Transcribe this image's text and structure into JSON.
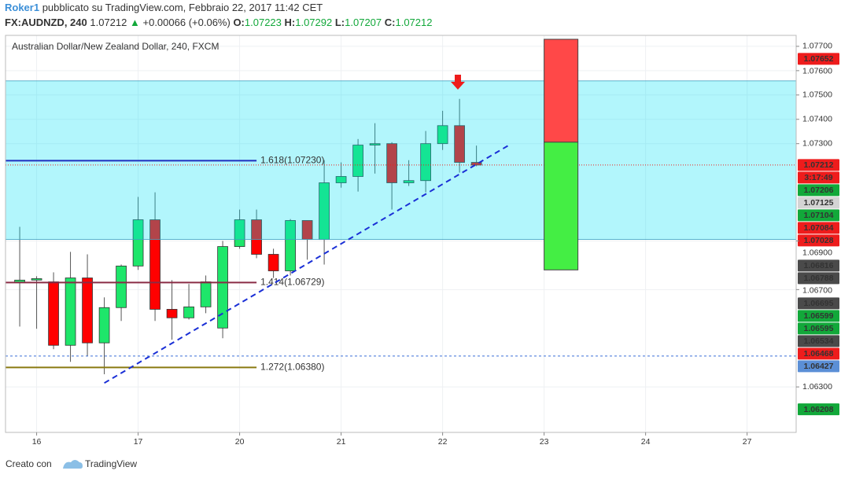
{
  "header": {
    "author": "Roker1",
    "published": "pubblicato su TradingView.com, Febbraio 22, 2017 11:42 CET",
    "symbol": "FX:AUDNZD, 240",
    "last": 1.07212,
    "change": "+0.00066 (+0.06%)",
    "o_label": "O:",
    "open": 1.07223,
    "h_label": "H:",
    "high": 1.07292,
    "l_label": "L:",
    "low": 1.07207,
    "c_label": "C:",
    "close": 1.07212
  },
  "chart_data": {
    "type": "candlestick",
    "title": "Australian Dollar/New Zealand Dollar, 240, FXCM",
    "x": [
      0,
      1,
      2,
      3,
      4,
      5,
      6,
      7,
      8,
      9,
      10,
      11,
      12,
      13,
      14,
      15,
      16,
      17,
      18,
      19,
      20,
      21,
      22,
      23,
      24,
      25,
      26,
      27
    ],
    "open": [
      1.06729,
      1.06739,
      1.06732,
      1.06471,
      1.06748,
      1.06481,
      1.06626,
      1.06797,
      1.06987,
      1.06619,
      1.06584,
      1.06629,
      1.06542,
      1.06877,
      1.06987,
      1.06845,
      1.06777,
      1.06984,
      1.06906,
      1.07139,
      1.07165,
      1.07294,
      1.073,
      1.07139,
      1.07148,
      1.073,
      1.07374,
      1.07223
    ],
    "high": [
      1.06958,
      1.06755,
      1.06771,
      1.06855,
      1.06845,
      1.06668,
      1.06803,
      1.07081,
      1.071,
      1.06739,
      1.06723,
      1.06758,
      1.069,
      1.07029,
      1.07029,
      1.06868,
      1.0699,
      1.06984,
      1.07232,
      1.07223,
      1.07319,
      1.07384,
      1.07306,
      1.07232,
      1.07352,
      1.07435,
      1.07484,
      1.07292
    ],
    "low": [
      1.06548,
      1.06539,
      1.06455,
      1.06403,
      1.06426,
      1.06352,
      1.06571,
      1.06781,
      1.06571,
      1.06494,
      1.06577,
      1.06603,
      1.065,
      1.06868,
      1.06829,
      1.06748,
      1.06758,
      1.06823,
      1.06803,
      1.07119,
      1.07103,
      1.07177,
      1.07029,
      1.07126,
      1.071,
      1.07274,
      1.07181,
      1.07207
    ],
    "close": [
      1.06739,
      1.06745,
      1.06471,
      1.06748,
      1.06481,
      1.06626,
      1.06797,
      1.06987,
      1.06619,
      1.06584,
      1.06629,
      1.06732,
      1.06877,
      1.06987,
      1.06845,
      1.06777,
      1.06984,
      1.06906,
      1.07139,
      1.07165,
      1.07294,
      1.073,
      1.07139,
      1.07148,
      1.073,
      1.07374,
      1.07223,
      1.07212
    ],
    "up_color": "#1ee66a",
    "down_color": "#ff0000",
    "xlim": [
      -0.84,
      45.9
    ],
    "xticks": [
      {
        "value": 1,
        "label": "16"
      },
      {
        "value": 7,
        "label": "17"
      },
      {
        "value": 13,
        "label": "20"
      },
      {
        "value": 19,
        "label": "21"
      },
      {
        "value": 25,
        "label": "22"
      },
      {
        "value": 31,
        "label": "23"
      },
      {
        "value": 37,
        "label": "24"
      },
      {
        "value": 43,
        "label": "27"
      }
    ],
    "ylim": [
      1.06113,
      1.07745
    ],
    "yticks": [
      {
        "value": 1.077,
        "label": "1.07700"
      },
      {
        "value": 1.076,
        "label": "1.07600"
      },
      {
        "value": 1.075,
        "label": "1.07500"
      },
      {
        "value": 1.074,
        "label": "1.07400"
      },
      {
        "value": 1.073,
        "label": "1.07300"
      },
      {
        "value": 1.069,
        "label": "1.06900"
      },
      {
        "value": 1.067,
        "label": "1.06700"
      },
      {
        "value": 1.063,
        "label": "1.06300"
      }
    ],
    "grid": true,
    "zone": {
      "top": 1.07558,
      "bottom": 1.06906,
      "color": "rgba(0,225,245,0.3)"
    },
    "fib_levels": [
      {
        "value": 1.0723,
        "label": "1.618(1.07230)",
        "to_x": 14,
        "color": "#1e2fbf"
      },
      {
        "value": 1.06729,
        "label": "1.414(1.06729)",
        "to_x": 14,
        "color": "#8a2c46"
      },
      {
        "value": 1.0638,
        "label": "1.272(1.06380)",
        "to_x": 14,
        "color": "#8a7a10"
      }
    ],
    "trend_line": {
      "x": [
        5,
        29
      ],
      "y": [
        1.06316,
        1.07297
      ],
      "color": "#1a2fd6"
    },
    "position": {
      "x": [
        31,
        33
      ],
      "top": 1.07729,
      "entry": 1.07306,
      "bottom": 1.06781,
      "loss_color": "#ff4848",
      "profit_color": "#44ee44"
    },
    "price_labels": [
      {
        "value": 1.07652,
        "color": "#ee1c1c"
      },
      {
        "value": 1.07212,
        "color": "#ee1c1c"
      },
      {
        "value": 1.07206,
        "color": "#12a83a"
      },
      {
        "value": 1.07125,
        "color": "#d4d4d4"
      },
      {
        "value": 1.07104,
        "color": "#12a83a"
      },
      {
        "value": 1.07084,
        "color": "#ee1c1c"
      },
      {
        "value": 1.07028,
        "color": "#ee1c1c"
      },
      {
        "value": 1.06816,
        "color": "#4a4a4a"
      },
      {
        "value": 1.06788,
        "color": "#4a4a4a"
      },
      {
        "value": 1.06695,
        "color": "#4a4a4a"
      },
      {
        "value": 1.06599,
        "color": "#12a83a"
      },
      {
        "value": 1.06595,
        "color": "#12a83a"
      },
      {
        "value": 1.06534,
        "color": "#4a4a4a"
      },
      {
        "value": 1.06468,
        "color": "#ee1c1c"
      },
      {
        "value": 1.06427,
        "color": "#5b8fd6"
      },
      {
        "value": 1.06208,
        "color": "#12a83a"
      }
    ],
    "countdown": "3:17:49",
    "current_price": 1.07212,
    "current_color": "#ee1c1c",
    "alert_price": 1.06427,
    "alert_color": "#3b6fd6"
  },
  "footer": {
    "made_with": "Creato con",
    "brand": "TradingView"
  }
}
